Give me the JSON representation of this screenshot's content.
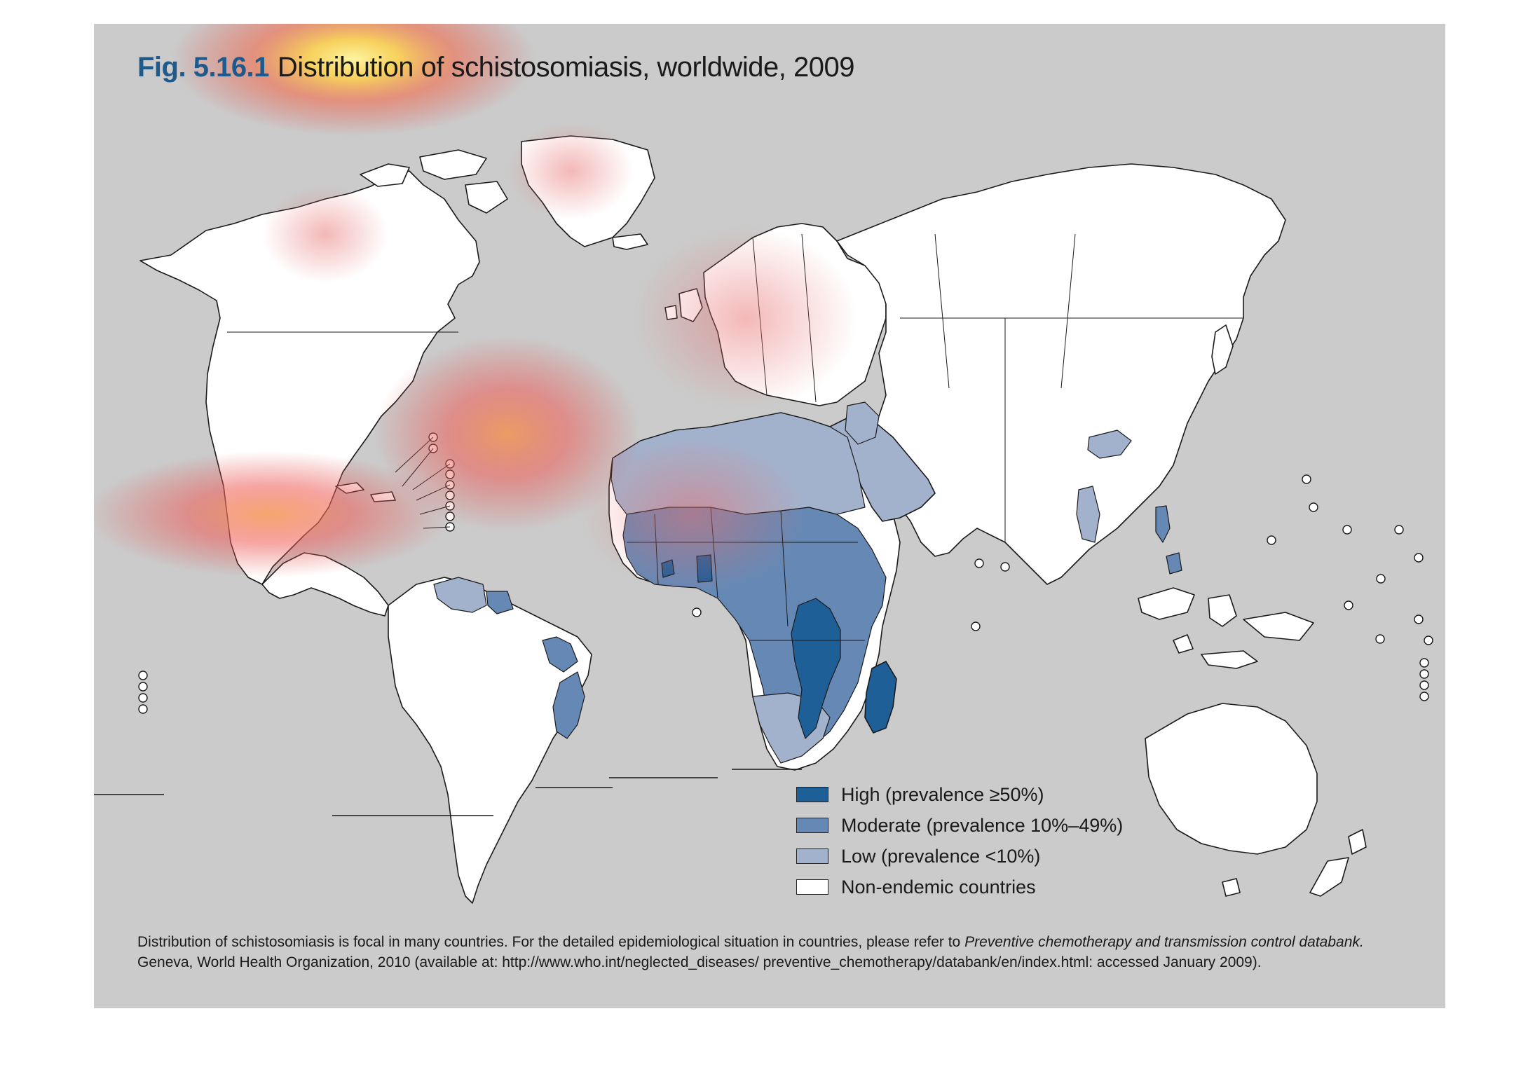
{
  "figure": {
    "number": "Fig. 5.16.1",
    "title": "Distribution of schistosomiasis, worldwide, 2009"
  },
  "legend": {
    "items": [
      {
        "label": "High (prevalence ≥50%)",
        "color": "#1f5f98"
      },
      {
        "label": "Moderate (prevalence 10%–49%)",
        "color": "#6688b4"
      },
      {
        "label": "Low (prevalence <10%)",
        "color": "#a3b2cc"
      },
      {
        "label": "Non-endemic countries",
        "color": "#ffffff"
      }
    ]
  },
  "footnote": {
    "line1_plain": "Distribution of schistosomiasis is focal in many countries. For the detailed epidemiological situation in countries, please refer to ",
    "line1_italic": "Preventive chemotherapy and transmission control databank.",
    "line2": "Geneva, World Health Organization, 2010 (available at: http://www.who.int/neglected_diseases/ preventive_chemotherapy/databank/en/index.html: accessed January 2009)."
  },
  "colors": {
    "background": "#cbcbcb",
    "land": "#ffffff",
    "outline": "#1a1a1a",
    "title_accent": "#1f5a8c"
  },
  "overlay": {
    "type": "attention-heatmap"
  }
}
